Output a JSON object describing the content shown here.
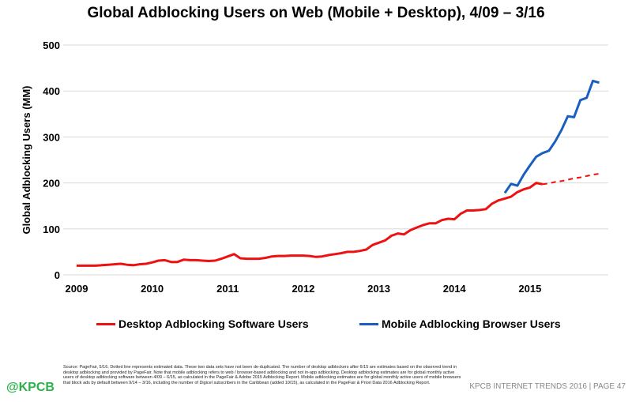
{
  "chart_data": {
    "type": "line",
    "title": "Global Adblocking Users on Web (Mobile + Desktop), 4/09 – 3/16",
    "ylabel": "Global Adblocking Users (MM)",
    "xlabel": "",
    "ylim": [
      0,
      500
    ],
    "yticks": [
      "0",
      "100",
      "200",
      "300",
      "400",
      "500"
    ],
    "xticks": [
      "2009",
      "2010",
      "2011",
      "2012",
      "2013",
      "2014",
      "2015"
    ],
    "grid": true,
    "legend_position": "bottom",
    "x_start": "2009-04",
    "series": [
      {
        "name": "Desktop Adblocking Software Users",
        "color": "#ee1111",
        "start": "2009-04",
        "values": [
          20,
          20,
          20,
          20,
          21,
          22,
          23,
          24,
          22,
          21,
          23,
          24,
          27,
          31,
          32,
          28,
          28,
          33,
          32,
          32,
          31,
          30,
          31,
          35,
          40,
          45,
          36,
          35,
          35,
          35,
          37,
          40,
          41,
          41,
          42,
          42,
          42,
          41,
          39,
          40,
          43,
          45,
          47,
          50,
          50,
          52,
          55,
          65,
          70,
          75,
          85,
          90,
          88,
          97,
          103,
          108,
          112,
          112,
          119,
          122,
          121,
          133,
          140,
          140,
          141,
          143,
          155,
          162,
          166,
          170,
          180,
          186,
          190,
          200,
          197
        ]
      },
      {
        "name": "Desktop Adblocking Software Users (estimated)",
        "color": "#ee1111",
        "dashed": true,
        "start": "2015-06",
        "values": [
          197,
          199,
          202,
          204,
          207,
          210,
          212,
          215,
          218,
          220
        ]
      },
      {
        "name": "Mobile Adblocking Browser Users",
        "color": "#1a5fbf",
        "start": "2014-12",
        "values": [
          178,
          198,
          194,
          218,
          238,
          257,
          265,
          270,
          290,
          315,
          345,
          343,
          380,
          385,
          422,
          418
        ]
      }
    ]
  },
  "legend": [
    {
      "label": "Desktop Adblocking Software Users",
      "color": "#ee1111"
    },
    {
      "label": "Mobile Adblocking Browser Users",
      "color": "#1a5fbf"
    }
  ],
  "footer": {
    "logo": "@KPCB",
    "source": "Source: PageFair, 5/16. Dotted line represents estimated data. These two data sets have not been de-duplicated. The number of desktop adblockers after 6/15 are estimates based on the observed trend in desktop adblocking and provided by PageFair. Note that mobile adblocking refers to web / browser-based adblocking and not in-app adblocking. Desktop adblocking estimates are for global monthly active users of desktop adblocking software between 4/09 – 6/15, as calculated in the PageFair & Adobe 2015 Adblocking Report. Mobile adblocking estimates are for global monthly active users of mobile browsers that block ads by default between 9/14 – 3/16, including the number of Digicel subscribers in the Caribbean (added 10/15), as calculated in the PageFair & Priori Data 2016 Adblocking Report.",
    "right": "KPCB INTERNET TRENDS 2016  |  PAGE 47"
  }
}
